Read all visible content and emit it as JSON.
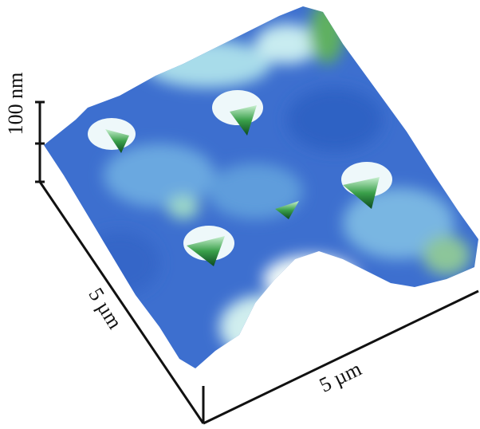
{
  "labels": {
    "z_scale": "100 nm",
    "y_length": "5 µm",
    "x_length": "5 µm"
  }
}
